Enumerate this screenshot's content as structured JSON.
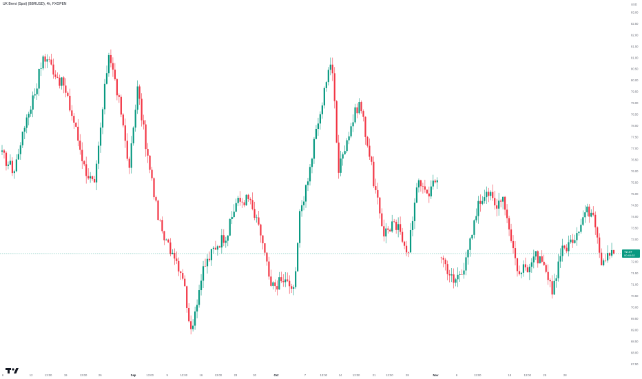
{
  "header": {
    "title": "UK Brent (Spot) (BBRUSD), 4h, FXOPEN"
  },
  "price_scale": {
    "currency": "USD"
  },
  "current_price": {
    "value": 72.37,
    "countdown": "00:40:02",
    "color": "#089981"
  },
  "colors": {
    "up": "#089981",
    "down": "#f23645",
    "grid": "#ffffff",
    "axis_text": "#6a6d78",
    "line": "#089981",
    "watermark": "#131722"
  },
  "watermark": {
    "icon": "tradingview-logo-icon"
  },
  "chart_data": {
    "type": "candlestick",
    "title": "UK Brent (Spot) (BBRUSD), 4h, FXOPEN",
    "y_ticks": [
      "83.00",
      "82.50",
      "82.00",
      "81.50",
      "81.00",
      "80.50",
      "80.00",
      "79.50",
      "79.00",
      "78.50",
      "78.00",
      "77.50",
      "77.00",
      "76.50",
      "76.00",
      "75.50",
      "75.00",
      "74.50",
      "74.00",
      "73.50",
      "73.00",
      "72.50",
      "72.00",
      "71.50",
      "71.00",
      "70.50",
      "70.00",
      "69.50",
      "69.00",
      "68.50",
      "68.00",
      "67.50"
    ],
    "ylim": [
      67.3,
      83.3
    ],
    "x_ticks": [
      {
        "label": "6",
        "t": 0.0,
        "bold": false
      },
      {
        "label": "12",
        "t": 0.046,
        "bold": false
      },
      {
        "label": "13:00",
        "t": 0.074,
        "bold": false
      },
      {
        "label": "19",
        "t": 0.102,
        "bold": false
      },
      {
        "label": "13:00",
        "t": 0.131,
        "bold": false
      },
      {
        "label": "26",
        "t": 0.158,
        "bold": false
      },
      {
        "label": "Sep",
        "t": 0.212,
        "bold": true
      },
      {
        "label": "13:00",
        "t": 0.239,
        "bold": false
      },
      {
        "label": "9",
        "t": 0.267,
        "bold": false
      },
      {
        "label": "13:00",
        "t": 0.294,
        "bold": false
      },
      {
        "label": "16",
        "t": 0.322,
        "bold": false
      },
      {
        "label": "13:00",
        "t": 0.35,
        "bold": false
      },
      {
        "label": "23",
        "t": 0.378,
        "bold": false
      },
      {
        "label": "30",
        "t": 0.409,
        "bold": false
      },
      {
        "label": "Oct",
        "t": 0.444,
        "bold": true
      },
      {
        "label": "7",
        "t": 0.491,
        "bold": false
      },
      {
        "label": "13:00",
        "t": 0.521,
        "bold": false
      },
      {
        "label": "14",
        "t": 0.548,
        "bold": false
      },
      {
        "label": "13:00",
        "t": 0.574,
        "bold": false
      },
      {
        "label": "21",
        "t": 0.603,
        "bold": false
      },
      {
        "label": "13:00",
        "t": 0.628,
        "bold": false
      },
      {
        "label": "28",
        "t": 0.657,
        "bold": false
      },
      {
        "label": "Nov",
        "t": 0.703,
        "bold": true
      },
      {
        "label": "6",
        "t": 0.737,
        "bold": false
      },
      {
        "label": "13:00",
        "t": 0.771,
        "bold": false
      },
      {
        "label": "18",
        "t": 0.823,
        "bold": false
      },
      {
        "label": "13:00",
        "t": 0.852,
        "bold": false
      },
      {
        "label": "25",
        "t": 0.88,
        "bold": false
      },
      {
        "label": "28",
        "t": 0.913,
        "bold": false
      }
    ],
    "n_bars": 300,
    "keypoints": [
      [
        0,
        76.7
      ],
      [
        6,
        76.0
      ],
      [
        10,
        77.8
      ],
      [
        16,
        79.5
      ],
      [
        20,
        81.1
      ],
      [
        23,
        80.8
      ],
      [
        30,
        79.7
      ],
      [
        35,
        78.2
      ],
      [
        40,
        76.2
      ],
      [
        45,
        75.3
      ],
      [
        52,
        81.3
      ],
      [
        58,
        78.6
      ],
      [
        62,
        76.2
      ],
      [
        66,
        79.6
      ],
      [
        72,
        76.0
      ],
      [
        78,
        73.1
      ],
      [
        84,
        72.3
      ],
      [
        88,
        71.4
      ],
      [
        92,
        69.0
      ],
      [
        98,
        71.7
      ],
      [
        104,
        72.7
      ],
      [
        110,
        73.3
      ],
      [
        114,
        74.6
      ],
      [
        120,
        74.8
      ],
      [
        126,
        73.2
      ],
      [
        131,
        70.9
      ],
      [
        137,
        71.2
      ],
      [
        142,
        70.8
      ],
      [
        145,
        74.0
      ],
      [
        150,
        76.2
      ],
      [
        155,
        78.6
      ],
      [
        159,
        80.6
      ],
      [
        161,
        80.4
      ],
      [
        164,
        76.0
      ],
      [
        167,
        77.1
      ],
      [
        170,
        78.0
      ],
      [
        174,
        79.1
      ],
      [
        178,
        77.3
      ],
      [
        182,
        75.0
      ],
      [
        186,
        73.3
      ],
      [
        190,
        73.6
      ],
      [
        194,
        73.4
      ],
      [
        198,
        72.4
      ],
      [
        202,
        75.5
      ],
      [
        207,
        75.0
      ],
      [
        212,
        75.6
      ],
      [
        213,
        null
      ],
      [
        214,
        72.3
      ],
      [
        220,
        71.1
      ],
      [
        226,
        72.0
      ],
      [
        232,
        74.5
      ],
      [
        236,
        75.2
      ],
      [
        240,
        74.5
      ],
      [
        244,
        75.0
      ],
      [
        248,
        72.9
      ],
      [
        252,
        71.5
      ],
      [
        256,
        71.8
      ],
      [
        260,
        72.3
      ],
      [
        264,
        71.7
      ],
      [
        268,
        70.7
      ],
      [
        272,
        72.4
      ],
      [
        278,
        73.0
      ],
      [
        284,
        74.2
      ],
      [
        288,
        74.3
      ],
      [
        292,
        72.1
      ],
      [
        296,
        72.3
      ],
      [
        298,
        72.37
      ]
    ]
  }
}
